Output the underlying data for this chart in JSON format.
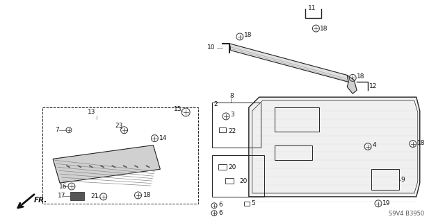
{
  "bg_color": "#ffffff",
  "fig_width": 6.4,
  "fig_height": 3.19,
  "dpi": 100,
  "watermark_text": "S9V4 B3950",
  "line_color": "#222222",
  "label_fontsize": 6.5,
  "label_color": "#111111"
}
